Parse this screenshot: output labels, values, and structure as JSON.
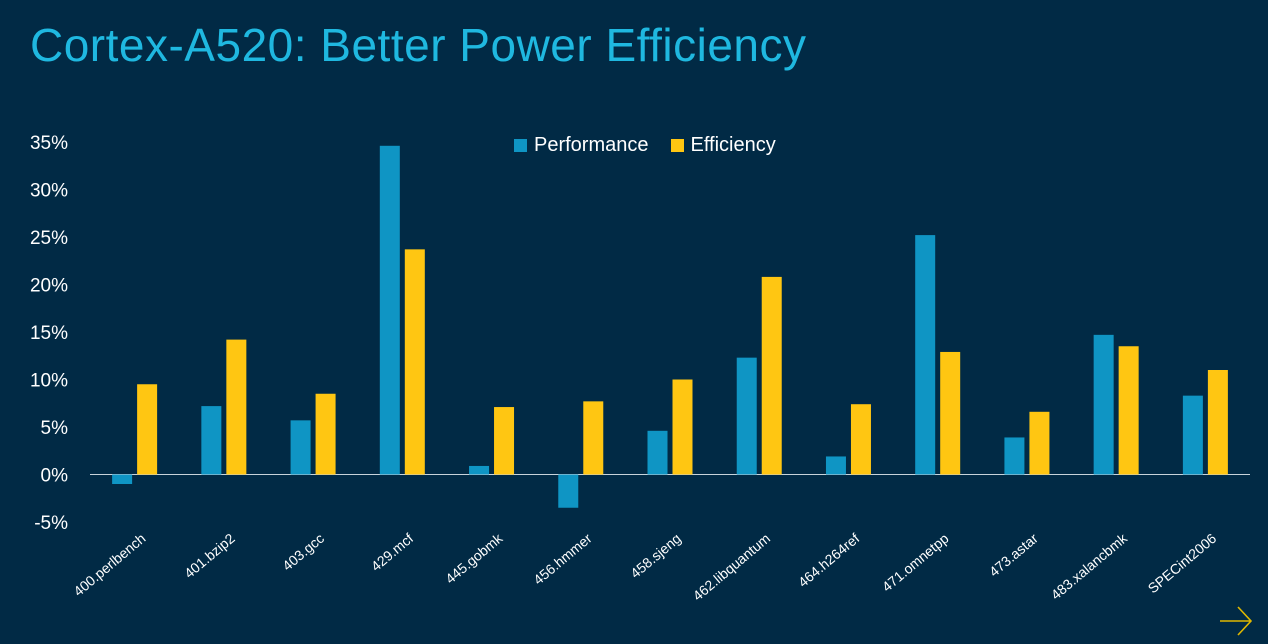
{
  "title": "Cortex-A520: Better Power Efficiency",
  "colors": {
    "background": "#012a45",
    "title": "#1fb8e0",
    "performance": "#0f95c4",
    "efficiency": "#ffc612",
    "text": "#ffffff",
    "arrow": "#e0b800"
  },
  "chart_data": {
    "type": "bar",
    "categories": [
      "400.perlbench",
      "401.bzip2",
      "403.gcc",
      "429.mcf",
      "445.gobmk",
      "456.hmmer",
      "458.sjeng",
      "462.libquantum",
      "464.h264ref",
      "471.omnetpp",
      "473.astar",
      "483.xalancbmk",
      "SPECint2006"
    ],
    "series": [
      {
        "name": "Performance",
        "values": [
          -1.0,
          7.2,
          5.7,
          34.6,
          0.9,
          -3.5,
          4.6,
          12.3,
          1.9,
          25.2,
          3.9,
          14.7,
          8.3
        ]
      },
      {
        "name": "Efficiency",
        "values": [
          9.5,
          14.2,
          8.5,
          23.7,
          7.1,
          7.7,
          10.0,
          20.8,
          7.4,
          12.9,
          6.6,
          13.5,
          11.0
        ]
      }
    ],
    "yticks": [
      "-5%",
      "0%",
      "5%",
      "10%",
      "15%",
      "20%",
      "25%",
      "30%",
      "35%"
    ],
    "ylim": [
      -5,
      35
    ],
    "legend_position": "top-center",
    "grid": false
  }
}
